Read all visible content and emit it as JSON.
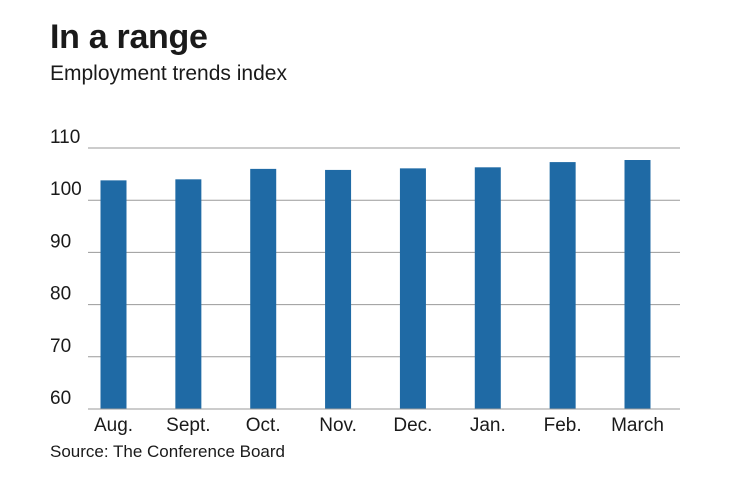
{
  "header": {
    "title": "In a range",
    "subtitle": "Employment trends index"
  },
  "footer": {
    "source": "Source: The Conference Board"
  },
  "colors": {
    "bar": "#1f6aa5",
    "grid": "#9a9a9a"
  },
  "chart_data": {
    "type": "bar",
    "title": "",
    "xlabel": "",
    "ylabel": "",
    "categories": [
      "Aug.",
      "Sept.",
      "Oct.",
      "Nov.",
      "Dec.",
      "Jan.",
      "Feb.",
      "March"
    ],
    "values": [
      103.8,
      104.0,
      106.0,
      105.8,
      106.1,
      106.3,
      107.3,
      107.7
    ],
    "ylim": [
      60,
      110
    ],
    "yticks": [
      60,
      70,
      80,
      90,
      100,
      110
    ],
    "grid": true,
    "legend": "none"
  }
}
